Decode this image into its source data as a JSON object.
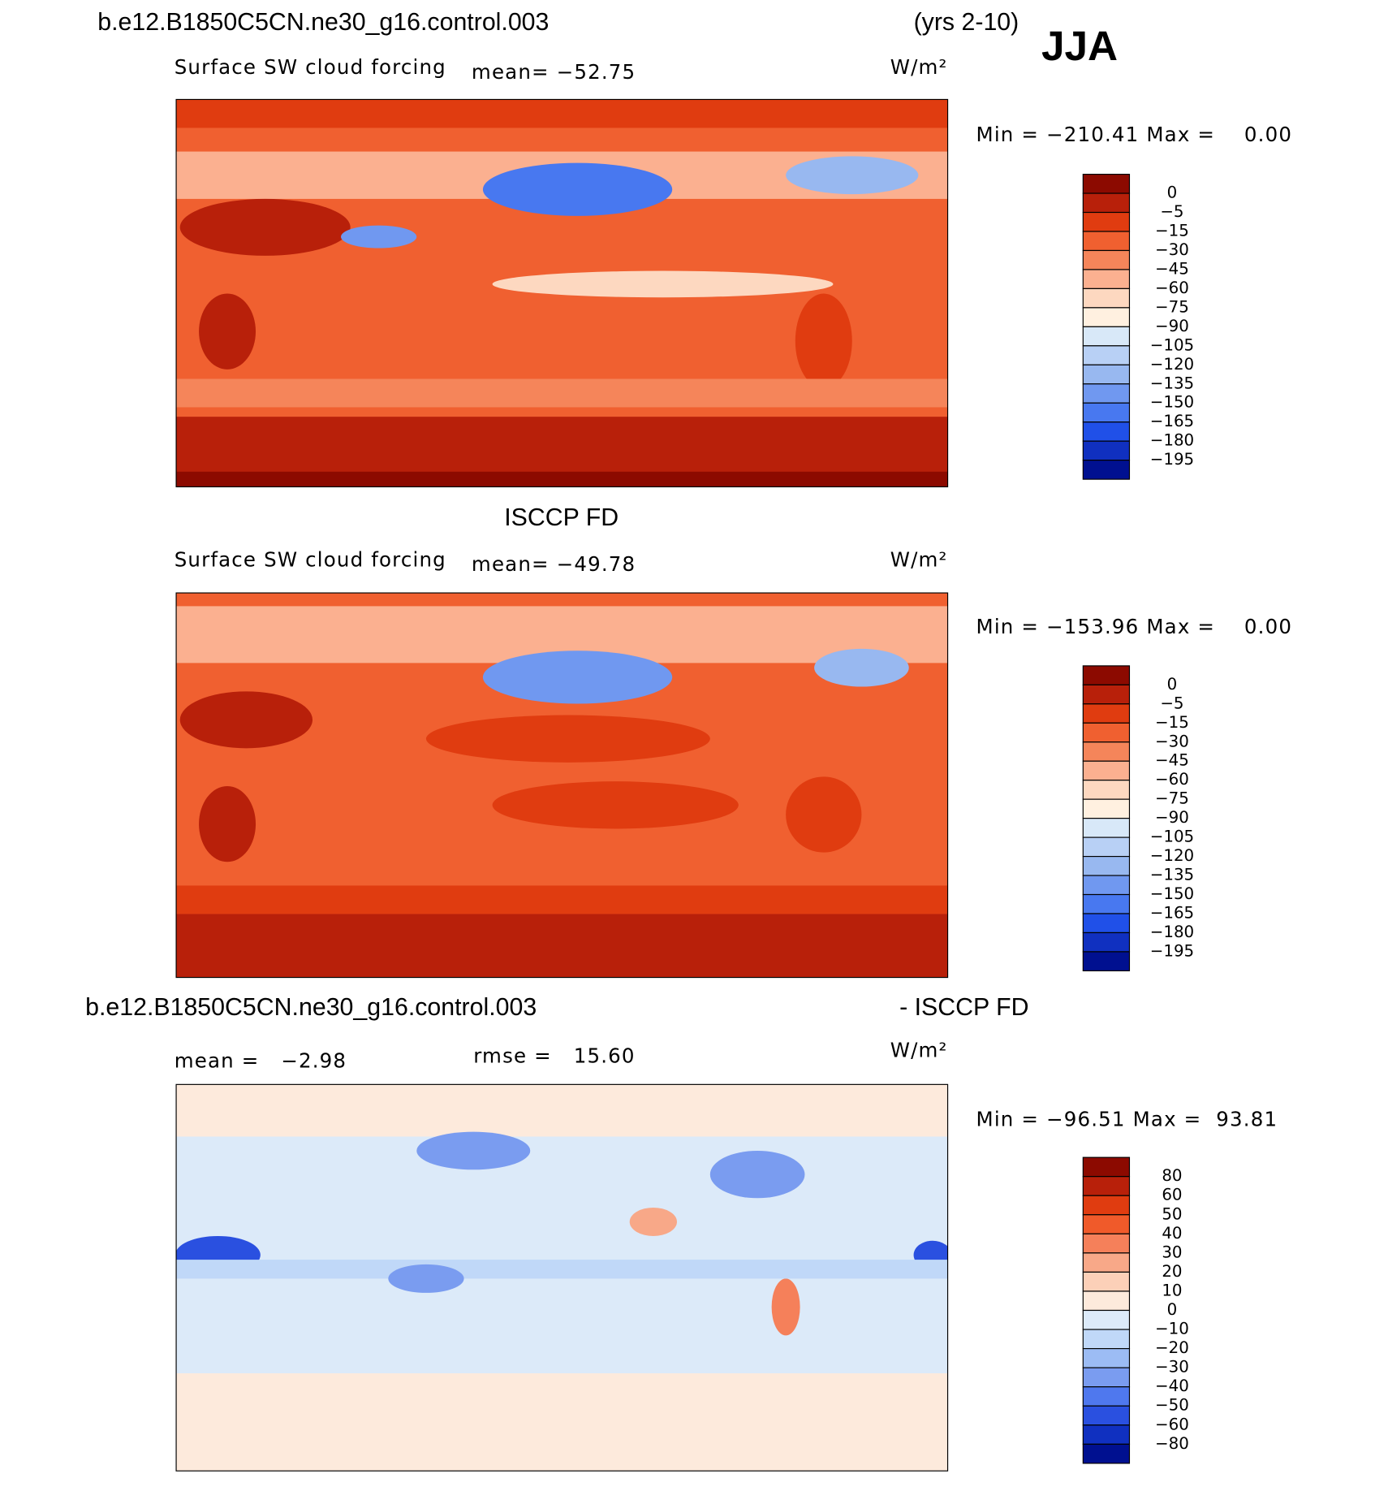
{
  "header": {
    "case": "b.e12.B1850C5CN.ne30_g16.control.003",
    "years": "(yrs 2-10)",
    "season": "JJA"
  },
  "panels": [
    {
      "title": null,
      "subtitle": "Surface SW cloud forcing",
      "mean": "mean= −52.75",
      "units": "W/m²",
      "minmax": "Min = −210.41 Max =    0.00",
      "colorbar": {
        "labels": [
          "0",
          "−5",
          "−15",
          "−30",
          "−45",
          "−60",
          "−75",
          "−90",
          "−105",
          "−120",
          "−135",
          "−150",
          "−165",
          "−180",
          "−195"
        ],
        "colors": [
          "#8c0a00",
          "#b8200a",
          "#e03c10",
          "#f06030",
          "#f5855a",
          "#fbb090",
          "#fdd8c0",
          "#fff0e0",
          "#d8e8f8",
          "#b8d0f5",
          "#98b8f0",
          "#7098f0",
          "#4878f0",
          "#2050e8",
          "#1030c0",
          "#001090"
        ]
      }
    },
    {
      "title": "ISCCP FD",
      "subtitle": "Surface SW cloud forcing",
      "mean": "mean= −49.78",
      "units": "W/m²",
      "minmax": "Min = −153.96 Max =    0.00",
      "colorbar": {
        "labels": [
          "0",
          "−5",
          "−15",
          "−30",
          "−45",
          "−60",
          "−75",
          "−90",
          "−105",
          "−120",
          "−135",
          "−150",
          "−165",
          "−180",
          "−195"
        ],
        "colors": [
          "#8c0a00",
          "#b8200a",
          "#e03c10",
          "#f06030",
          "#f5855a",
          "#fbb090",
          "#fdd8c0",
          "#fff0e0",
          "#d8e8f8",
          "#b8d0f5",
          "#98b8f0",
          "#7098f0",
          "#4878f0",
          "#2050e8",
          "#1030c0",
          "#001090"
        ]
      }
    },
    {
      "title": "b.e12.B1850C5CN.ne30_g16.control.003",
      "title_right": "- ISCCP FD",
      "mean": "mean =   −2.98",
      "rmse": "rmse =   15.60",
      "units": "W/m²",
      "minmax": "Min = −96.51 Max =  93.81",
      "colorbar": {
        "labels": [
          "80",
          "60",
          "50",
          "40",
          "30",
          "20",
          "10",
          "0",
          "−10",
          "−20",
          "−30",
          "−40",
          "−50",
          "−60",
          "−80"
        ],
        "colors": [
          "#8c0a00",
          "#b8200a",
          "#e03c10",
          "#f05a2a",
          "#f5805a",
          "#f8a888",
          "#fcd0b8",
          "#fdeadc",
          "#dceaf9",
          "#c0d8f8",
          "#9cbcf4",
          "#7a9cf0",
          "#4f78ee",
          "#2a50e0",
          "#1030c0",
          "#001090"
        ]
      }
    }
  ]
}
